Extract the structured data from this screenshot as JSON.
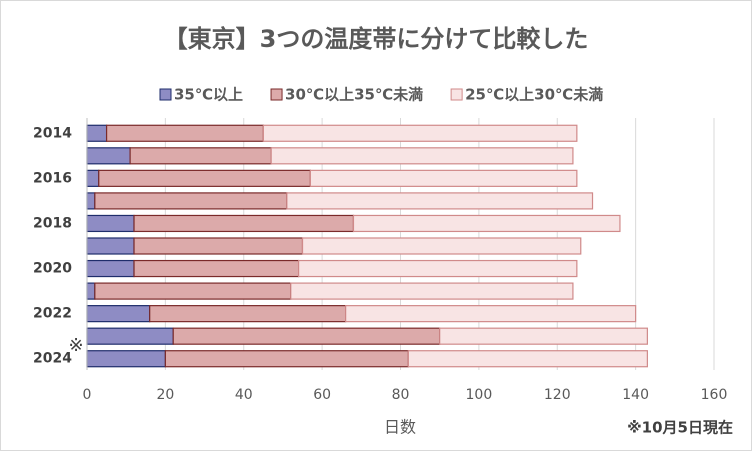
{
  "chart_data": {
    "type": "stacked_bar_horizontal",
    "title": "【東京】3つの温度帯に分けて比較した",
    "x_label": "日数",
    "note": "※10月5日現在",
    "annotation": "※",
    "categories": [
      "2014",
      null,
      "2016",
      null,
      "2018",
      null,
      "2020",
      null,
      "2022",
      null,
      "2024"
    ],
    "series": [
      {
        "name": "35℃以上",
        "color": "#8e8cc4",
        "border": "#1f2d6b",
        "values": [
          5,
          11,
          3,
          2,
          12,
          12,
          12,
          2,
          16,
          22,
          20
        ]
      },
      {
        "name": "30℃以上35℃未満",
        "color": "#dcaaaa",
        "border": "#7a2a2a",
        "values": [
          40,
          36,
          54,
          49,
          56,
          43,
          42,
          50,
          50,
          68,
          62
        ]
      },
      {
        "name": "25℃以上30℃未満",
        "color": "#f8e4e4",
        "border": "#d08a8a",
        "values": [
          80,
          77,
          68,
          78,
          68,
          71,
          71,
          72,
          74,
          53,
          61
        ]
      }
    ],
    "xlim": [
      0,
      160
    ],
    "xticks": [
      0,
      20,
      40,
      60,
      80,
      100,
      120,
      140,
      160
    ],
    "grid": true
  }
}
